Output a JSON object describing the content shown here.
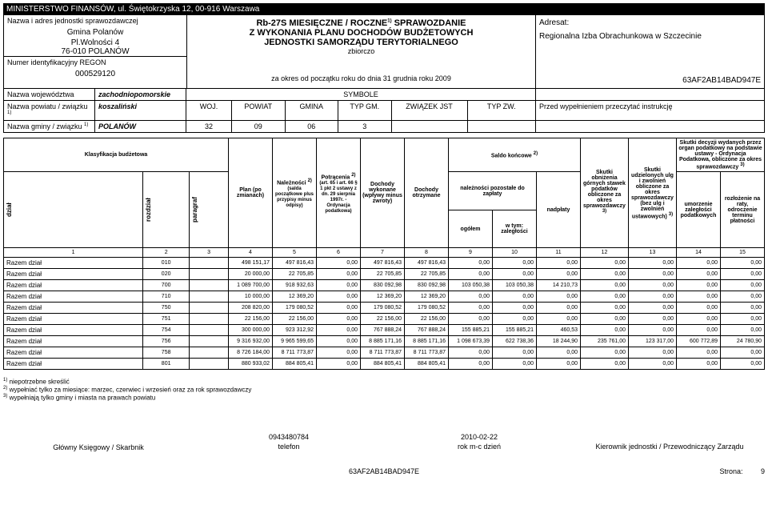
{
  "ministry": "MINISTERSTWO FINANSÓW, ul. Świętokrzyska 12, 00-916 Warszawa",
  "header": {
    "unit_label": "Nazwa i adres jednostki sprawozdawczej",
    "gmina": "Gmina Polanów",
    "address1": "Pl.Wolności 4",
    "address2": "76-010 POLANÓW",
    "regon_label": "Numer identyfikacyjny REGON",
    "regon": "000529120",
    "title1": "Rb-27S MIESIĘCZNE / ROCZNE",
    "title1_sup": "1)",
    "title1_end": " SPRAWOZDANIE",
    "title2": "Z WYKONANIA PLANU DOCHODÓW BUDŻETOWYCH",
    "title3": "JEDNOSTKI SAMORZĄDU TERYTORIALNEGO",
    "zbiorczo": "zbiorczo",
    "period": "za okres od początku roku do dnia 31 grudnia roku 2009",
    "adresat_label": "Adresat:",
    "adresat": "Regionalna Izba Obrachunkowa w Szczecinie",
    "code": "63AF2AB14BAD947E"
  },
  "admin": {
    "woj_label": "Nazwa województwa",
    "woj": "zachodniopomorskie",
    "pow_label": "Nazwa powiatu / związku",
    "pow_sup": "1)",
    "pow": "koszaliński",
    "gm_label": "Nazwa gminy / związku",
    "gm_sup": "1)",
    "gm": "POLANÓW",
    "symbole": "SYMBOLE",
    "cols": {
      "woj": "WOJ.",
      "powiat": "POWIAT",
      "gmina": "GMINA",
      "typgm": "TYP GM.",
      "zwjst": "ZWIĄZEK JST",
      "typzw": "TYP ZW."
    },
    "vals": {
      "woj": "32",
      "powiat": "09",
      "gmina": "06",
      "typgm": "3",
      "zwjst": "",
      "typzw": ""
    },
    "instrukcja": "Przed wypełnieniem przeczytać instrukcję"
  },
  "thead": {
    "klasyfikacja": "Klasyfikacja budżetowa",
    "dzial": "dział",
    "rozdzial": "rozdział",
    "paragraf": "paragraf",
    "plan": "Plan (po zmianach)",
    "naleznosci": "Należności",
    "naleznosci_sup": "2)",
    "naleznosci_sub": "(salda początkowe plus przypisy minus odpisy)",
    "potracenia": "Potrącenia",
    "potracenia_sup": "2)",
    "potracenia_sub": "(art. 65 i art. 66 § 1 pkt 2 ustawy z dn. 29 sierpnia 1997r. - Ordynacja podatkowa)",
    "dochody_wyk": "Dochody wykonane (wpływy minus zwroty)",
    "dochody_otrz": "Dochody otrzymane",
    "saldo": "Saldo końcowe",
    "saldo_sup": "2)",
    "nalez_poz": "należności pozostałe do zapłaty",
    "ogolem": "ogółem",
    "wtym": "w tym:",
    "zaleglosci": "zaległości",
    "nadplaty": "nadpłaty",
    "skutki_obn": "Skutki obniżenia górnych stawek podatków obliczone za okres sprawozdawczy",
    "skutki_obn_sup": "3)",
    "skutki_udz": "Skutki udzielonych ulg i zwolnień obliczone za okres sprawozdawczy (bez ulg i zwolnień ustawowych)",
    "skutki_udz_sup": "3)",
    "skutki_dec": "Skutki decyzji wydanych przez organ podatkowy na podstawie ustawy - Ordynacja Podatkowa, obliczone za okres sprawozdawczy",
    "skutki_dec_sup": "3)",
    "umorzenie": "umorzenie zaległości podatkowych",
    "rozlozenie": "rozłożenie na raty, odroczenie terminu płatności"
  },
  "colnums": [
    "1",
    "2",
    "3",
    "4",
    "5",
    "6",
    "7",
    "8",
    "9",
    "10",
    "11",
    "12",
    "13",
    "14",
    "15"
  ],
  "rows": [
    {
      "label": "Razem dział",
      "dz": "010",
      "c4": "498 151,17",
      "c5": "497 816,43",
      "c6": "0,00",
      "c7": "497 816,43",
      "c8": "497 816,43",
      "c9": "0,00",
      "c10": "0,00",
      "c11": "0,00",
      "c12": "0,00",
      "c13": "0,00",
      "c14": "0,00",
      "c15": "0,00"
    },
    {
      "label": "Razem dział",
      "dz": "020",
      "c4": "20 000,00",
      "c5": "22 705,85",
      "c6": "0,00",
      "c7": "22 705,85",
      "c8": "22 705,85",
      "c9": "0,00",
      "c10": "0,00",
      "c11": "0,00",
      "c12": "0,00",
      "c13": "0,00",
      "c14": "0,00",
      "c15": "0,00"
    },
    {
      "label": "Razem dział",
      "dz": "700",
      "c4": "1 089 700,00",
      "c5": "918 932,63",
      "c6": "0,00",
      "c7": "830 092,98",
      "c8": "830 092,98",
      "c9": "103 050,38",
      "c10": "103 050,38",
      "c11": "14 210,73",
      "c12": "0,00",
      "c13": "0,00",
      "c14": "0,00",
      "c15": "0,00"
    },
    {
      "label": "Razem dział",
      "dz": "710",
      "c4": "10 000,00",
      "c5": "12 369,20",
      "c6": "0,00",
      "c7": "12 369,20",
      "c8": "12 369,20",
      "c9": "0,00",
      "c10": "0,00",
      "c11": "0,00",
      "c12": "0,00",
      "c13": "0,00",
      "c14": "0,00",
      "c15": "0,00"
    },
    {
      "label": "Razem dział",
      "dz": "750",
      "c4": "208 820,00",
      "c5": "179 080,52",
      "c6": "0,00",
      "c7": "179 080,52",
      "c8": "179 080,52",
      "c9": "0,00",
      "c10": "0,00",
      "c11": "0,00",
      "c12": "0,00",
      "c13": "0,00",
      "c14": "0,00",
      "c15": "0,00"
    },
    {
      "label": "Razem dział",
      "dz": "751",
      "c4": "22 156,00",
      "c5": "22 156,00",
      "c6": "0,00",
      "c7": "22 156,00",
      "c8": "22 156,00",
      "c9": "0,00",
      "c10": "0,00",
      "c11": "0,00",
      "c12": "0,00",
      "c13": "0,00",
      "c14": "0,00",
      "c15": "0,00"
    },
    {
      "label": "Razem dział",
      "dz": "754",
      "c4": "300 000,00",
      "c5": "923 312,92",
      "c6": "0,00",
      "c7": "767 888,24",
      "c8": "767 888,24",
      "c9": "155 885,21",
      "c10": "155 885,21",
      "c11": "460,53",
      "c12": "0,00",
      "c13": "0,00",
      "c14": "0,00",
      "c15": "0,00"
    },
    {
      "label": "Razem dział",
      "dz": "756",
      "c4": "9 316 932,00",
      "c5": "9 965 599,65",
      "c6": "0,00",
      "c7": "8 885 171,16",
      "c8": "8 885 171,16",
      "c9": "1 098 673,39",
      "c10": "622 738,36",
      "c11": "18 244,90",
      "c12": "235 761,00",
      "c13": "123 317,00",
      "c14": "600 772,89",
      "c15": "24 780,90"
    },
    {
      "label": "Razem dział",
      "dz": "758",
      "c4": "8 726 184,00",
      "c5": "8 711 773,87",
      "c6": "0,00",
      "c7": "8 711 773,87",
      "c8": "8 711 773,87",
      "c9": "0,00",
      "c10": "0,00",
      "c11": "0,00",
      "c12": "0,00",
      "c13": "0,00",
      "c14": "0,00",
      "c15": "0,00"
    },
    {
      "label": "Razem dział",
      "dz": "801",
      "c4": "880 933,02",
      "c5": "884 805,41",
      "c6": "0,00",
      "c7": "884 805,41",
      "c8": "884 805,41",
      "c9": "0,00",
      "c10": "0,00",
      "c11": "0,00",
      "c12": "0,00",
      "c13": "0,00",
      "c14": "0,00",
      "c15": "0,00"
    }
  ],
  "footnotes": {
    "f1": "niepotrzebne skreślić",
    "f2": "wypełniać tylko za miesiące: marzec, czerwiec i wrzesień oraz za rok sprawozdawczy",
    "f3": "wypełniają tylko gminy i miasta na prawach powiatu"
  },
  "footer": {
    "sig1_top": "",
    "sig1": "Główny Księgowy / Skarbnik",
    "sig2_top": "0943480784",
    "sig2": "telefon",
    "sig3_top": "2010-02-22",
    "sig3": "rok  m-c  dzień",
    "sig4_top": "",
    "sig4": "Kierownik jednostki / Przewodniczący Zarządu",
    "bottom_code": "63AF2AB14BAD947E",
    "strona": "Strona:",
    "page": "9"
  }
}
